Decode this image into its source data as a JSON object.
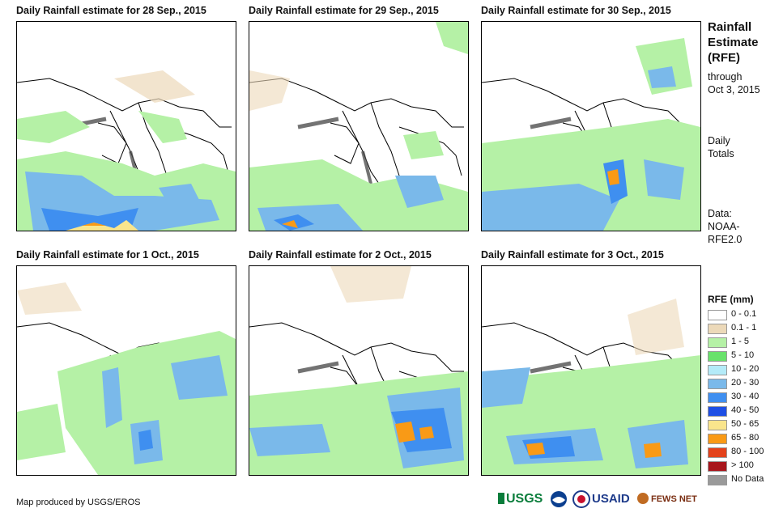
{
  "panels": [
    {
      "title": "Daily Rainfall estimate for 28 Sep., 2015"
    },
    {
      "title": "Daily Rainfall estimate for 29 Sep., 2015"
    },
    {
      "title": "Daily Rainfall estimate for 30 Sep., 2015"
    },
    {
      "title": "Daily Rainfall estimate for 1 Oct., 2015"
    },
    {
      "title": "Daily Rainfall estimate for 2 Oct., 2015"
    },
    {
      "title": "Daily Rainfall estimate for 3 Oct., 2015"
    }
  ],
  "side": {
    "title_line1": "Rainfall",
    "title_line2": "Estimate",
    "title_line3": "(RFE)",
    "through_label": "through",
    "date": "Oct 3, 2015",
    "daily_line1": "Daily",
    "daily_line2": "Totals",
    "data_line1": "Data:",
    "data_line2": "NOAA-",
    "data_line3": "RFE2.0"
  },
  "legend": {
    "title": "RFE (mm)",
    "items": [
      {
        "label": "0 - 0.1",
        "color": "#ffffff"
      },
      {
        "label": "0.1 - 1",
        "color": "#ecd9b9"
      },
      {
        "label": "1 - 5",
        "color": "#b5f1a6"
      },
      {
        "label": "5 - 10",
        "color": "#68e26b"
      },
      {
        "label": "10 - 20",
        "color": "#b4ebf8"
      },
      {
        "label": "20 - 30",
        "color": "#7ab9ea"
      },
      {
        "label": "30 - 40",
        "color": "#3f8ff0"
      },
      {
        "label": "40 - 50",
        "color": "#1e4fe4"
      },
      {
        "label": "50 - 65",
        "color": "#f9e58c"
      },
      {
        "label": "65 - 80",
        "color": "#f99a16"
      },
      {
        "label": "80 - 100",
        "color": "#e3421b"
      },
      {
        "label": "> 100",
        "color": "#a8161c"
      },
      {
        "label": "No Data",
        "color": "#9a9a9a"
      }
    ]
  },
  "footer": {
    "credit": "Map produced by USGS/EROS",
    "logo_usgs": "USGS",
    "logo_usaid": "USAID",
    "logo_fews": "FEWS NET"
  }
}
